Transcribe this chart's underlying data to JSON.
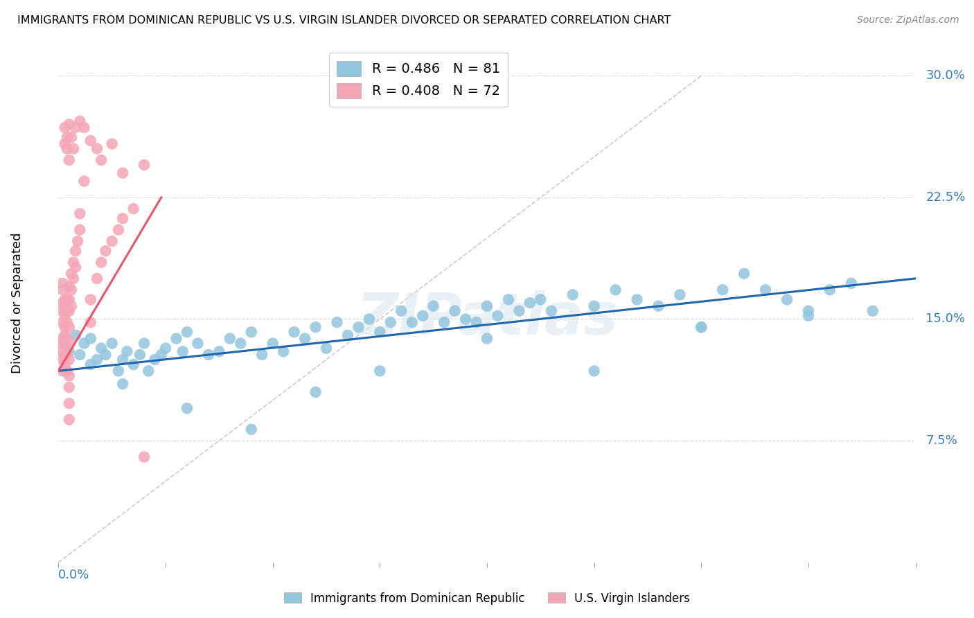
{
  "title": "IMMIGRANTS FROM DOMINICAN REPUBLIC VS U.S. VIRGIN ISLANDER DIVORCED OR SEPARATED CORRELATION CHART",
  "source": "Source: ZipAtlas.com",
  "ylabel": "Divorced or Separated",
  "ytick_labels": [
    "7.5%",
    "15.0%",
    "22.5%",
    "30.0%"
  ],
  "ytick_values": [
    0.075,
    0.15,
    0.225,
    0.3
  ],
  "xlim": [
    0.0,
    0.4
  ],
  "ylim": [
    0.0,
    0.32
  ],
  "legend_blue_r": "R = 0.486",
  "legend_blue_n": "N = 81",
  "legend_pink_r": "R = 0.408",
  "legend_pink_n": "N = 72",
  "blue_color": "#92c5de",
  "pink_color": "#f4a6b8",
  "trendline_blue": "#2166ac",
  "trendline_pink": "#e8566a",
  "diagonal_color": "#cccccc",
  "watermark": "ZIPatlas",
  "legend_label_blue": "Immigrants from Dominican Republic",
  "legend_label_pink": "U.S. Virgin Islanders",
  "blue_x": [
    0.005,
    0.008,
    0.01,
    0.012,
    0.015,
    0.015,
    0.018,
    0.02,
    0.022,
    0.025,
    0.028,
    0.03,
    0.032,
    0.035,
    0.038,
    0.04,
    0.042,
    0.045,
    0.048,
    0.05,
    0.055,
    0.058,
    0.06,
    0.065,
    0.07,
    0.075,
    0.08,
    0.085,
    0.09,
    0.095,
    0.1,
    0.105,
    0.11,
    0.115,
    0.12,
    0.125,
    0.13,
    0.135,
    0.14,
    0.145,
    0.15,
    0.155,
    0.16,
    0.165,
    0.17,
    0.175,
    0.18,
    0.185,
    0.19,
    0.195,
    0.2,
    0.205,
    0.21,
    0.215,
    0.22,
    0.225,
    0.23,
    0.24,
    0.25,
    0.26,
    0.27,
    0.28,
    0.29,
    0.3,
    0.31,
    0.32,
    0.33,
    0.34,
    0.35,
    0.36,
    0.37,
    0.38,
    0.03,
    0.06,
    0.09,
    0.12,
    0.15,
    0.2,
    0.25,
    0.3,
    0.35
  ],
  "blue_y": [
    0.13,
    0.14,
    0.128,
    0.135,
    0.122,
    0.138,
    0.125,
    0.132,
    0.128,
    0.135,
    0.118,
    0.125,
    0.13,
    0.122,
    0.128,
    0.135,
    0.118,
    0.125,
    0.128,
    0.132,
    0.138,
    0.13,
    0.142,
    0.135,
    0.128,
    0.13,
    0.138,
    0.135,
    0.142,
    0.128,
    0.135,
    0.13,
    0.142,
    0.138,
    0.145,
    0.132,
    0.148,
    0.14,
    0.145,
    0.15,
    0.142,
    0.148,
    0.155,
    0.148,
    0.152,
    0.158,
    0.148,
    0.155,
    0.15,
    0.148,
    0.158,
    0.152,
    0.162,
    0.155,
    0.16,
    0.162,
    0.155,
    0.165,
    0.158,
    0.168,
    0.162,
    0.158,
    0.165,
    0.145,
    0.168,
    0.178,
    0.168,
    0.162,
    0.155,
    0.168,
    0.172,
    0.155,
    0.11,
    0.095,
    0.082,
    0.105,
    0.118,
    0.138,
    0.118,
    0.145,
    0.152
  ],
  "pink_x": [
    0.002,
    0.002,
    0.002,
    0.002,
    0.002,
    0.002,
    0.002,
    0.002,
    0.002,
    0.002,
    0.003,
    0.003,
    0.003,
    0.003,
    0.003,
    0.003,
    0.003,
    0.003,
    0.004,
    0.004,
    0.004,
    0.004,
    0.004,
    0.004,
    0.005,
    0.005,
    0.005,
    0.005,
    0.005,
    0.005,
    0.005,
    0.005,
    0.005,
    0.005,
    0.006,
    0.006,
    0.006,
    0.007,
    0.007,
    0.008,
    0.008,
    0.009,
    0.01,
    0.01,
    0.012,
    0.015,
    0.015,
    0.018,
    0.02,
    0.022,
    0.025,
    0.028,
    0.03,
    0.035,
    0.04,
    0.003,
    0.003,
    0.004,
    0.004,
    0.005,
    0.005,
    0.006,
    0.007,
    0.008,
    0.01,
    0.012,
    0.015,
    0.018,
    0.02,
    0.025,
    0.03,
    0.04
  ],
  "pink_y": [
    0.13,
    0.138,
    0.148,
    0.155,
    0.16,
    0.168,
    0.172,
    0.125,
    0.135,
    0.118,
    0.145,
    0.152,
    0.158,
    0.162,
    0.14,
    0.128,
    0.135,
    0.122,
    0.148,
    0.155,
    0.162,
    0.138,
    0.128,
    0.118,
    0.145,
    0.155,
    0.162,
    0.17,
    0.135,
    0.125,
    0.115,
    0.108,
    0.098,
    0.088,
    0.158,
    0.168,
    0.178,
    0.175,
    0.185,
    0.192,
    0.182,
    0.198,
    0.205,
    0.215,
    0.235,
    0.162,
    0.148,
    0.175,
    0.185,
    0.192,
    0.198,
    0.205,
    0.212,
    0.218,
    0.245,
    0.258,
    0.268,
    0.255,
    0.262,
    0.27,
    0.248,
    0.262,
    0.255,
    0.268,
    0.272,
    0.268,
    0.26,
    0.255,
    0.248,
    0.258,
    0.24,
    0.065
  ],
  "blue_trend_x": [
    0.0,
    0.4
  ],
  "blue_trend_y": [
    0.118,
    0.175
  ],
  "pink_trend_x": [
    0.0,
    0.048
  ],
  "pink_trend_y": [
    0.118,
    0.225
  ]
}
